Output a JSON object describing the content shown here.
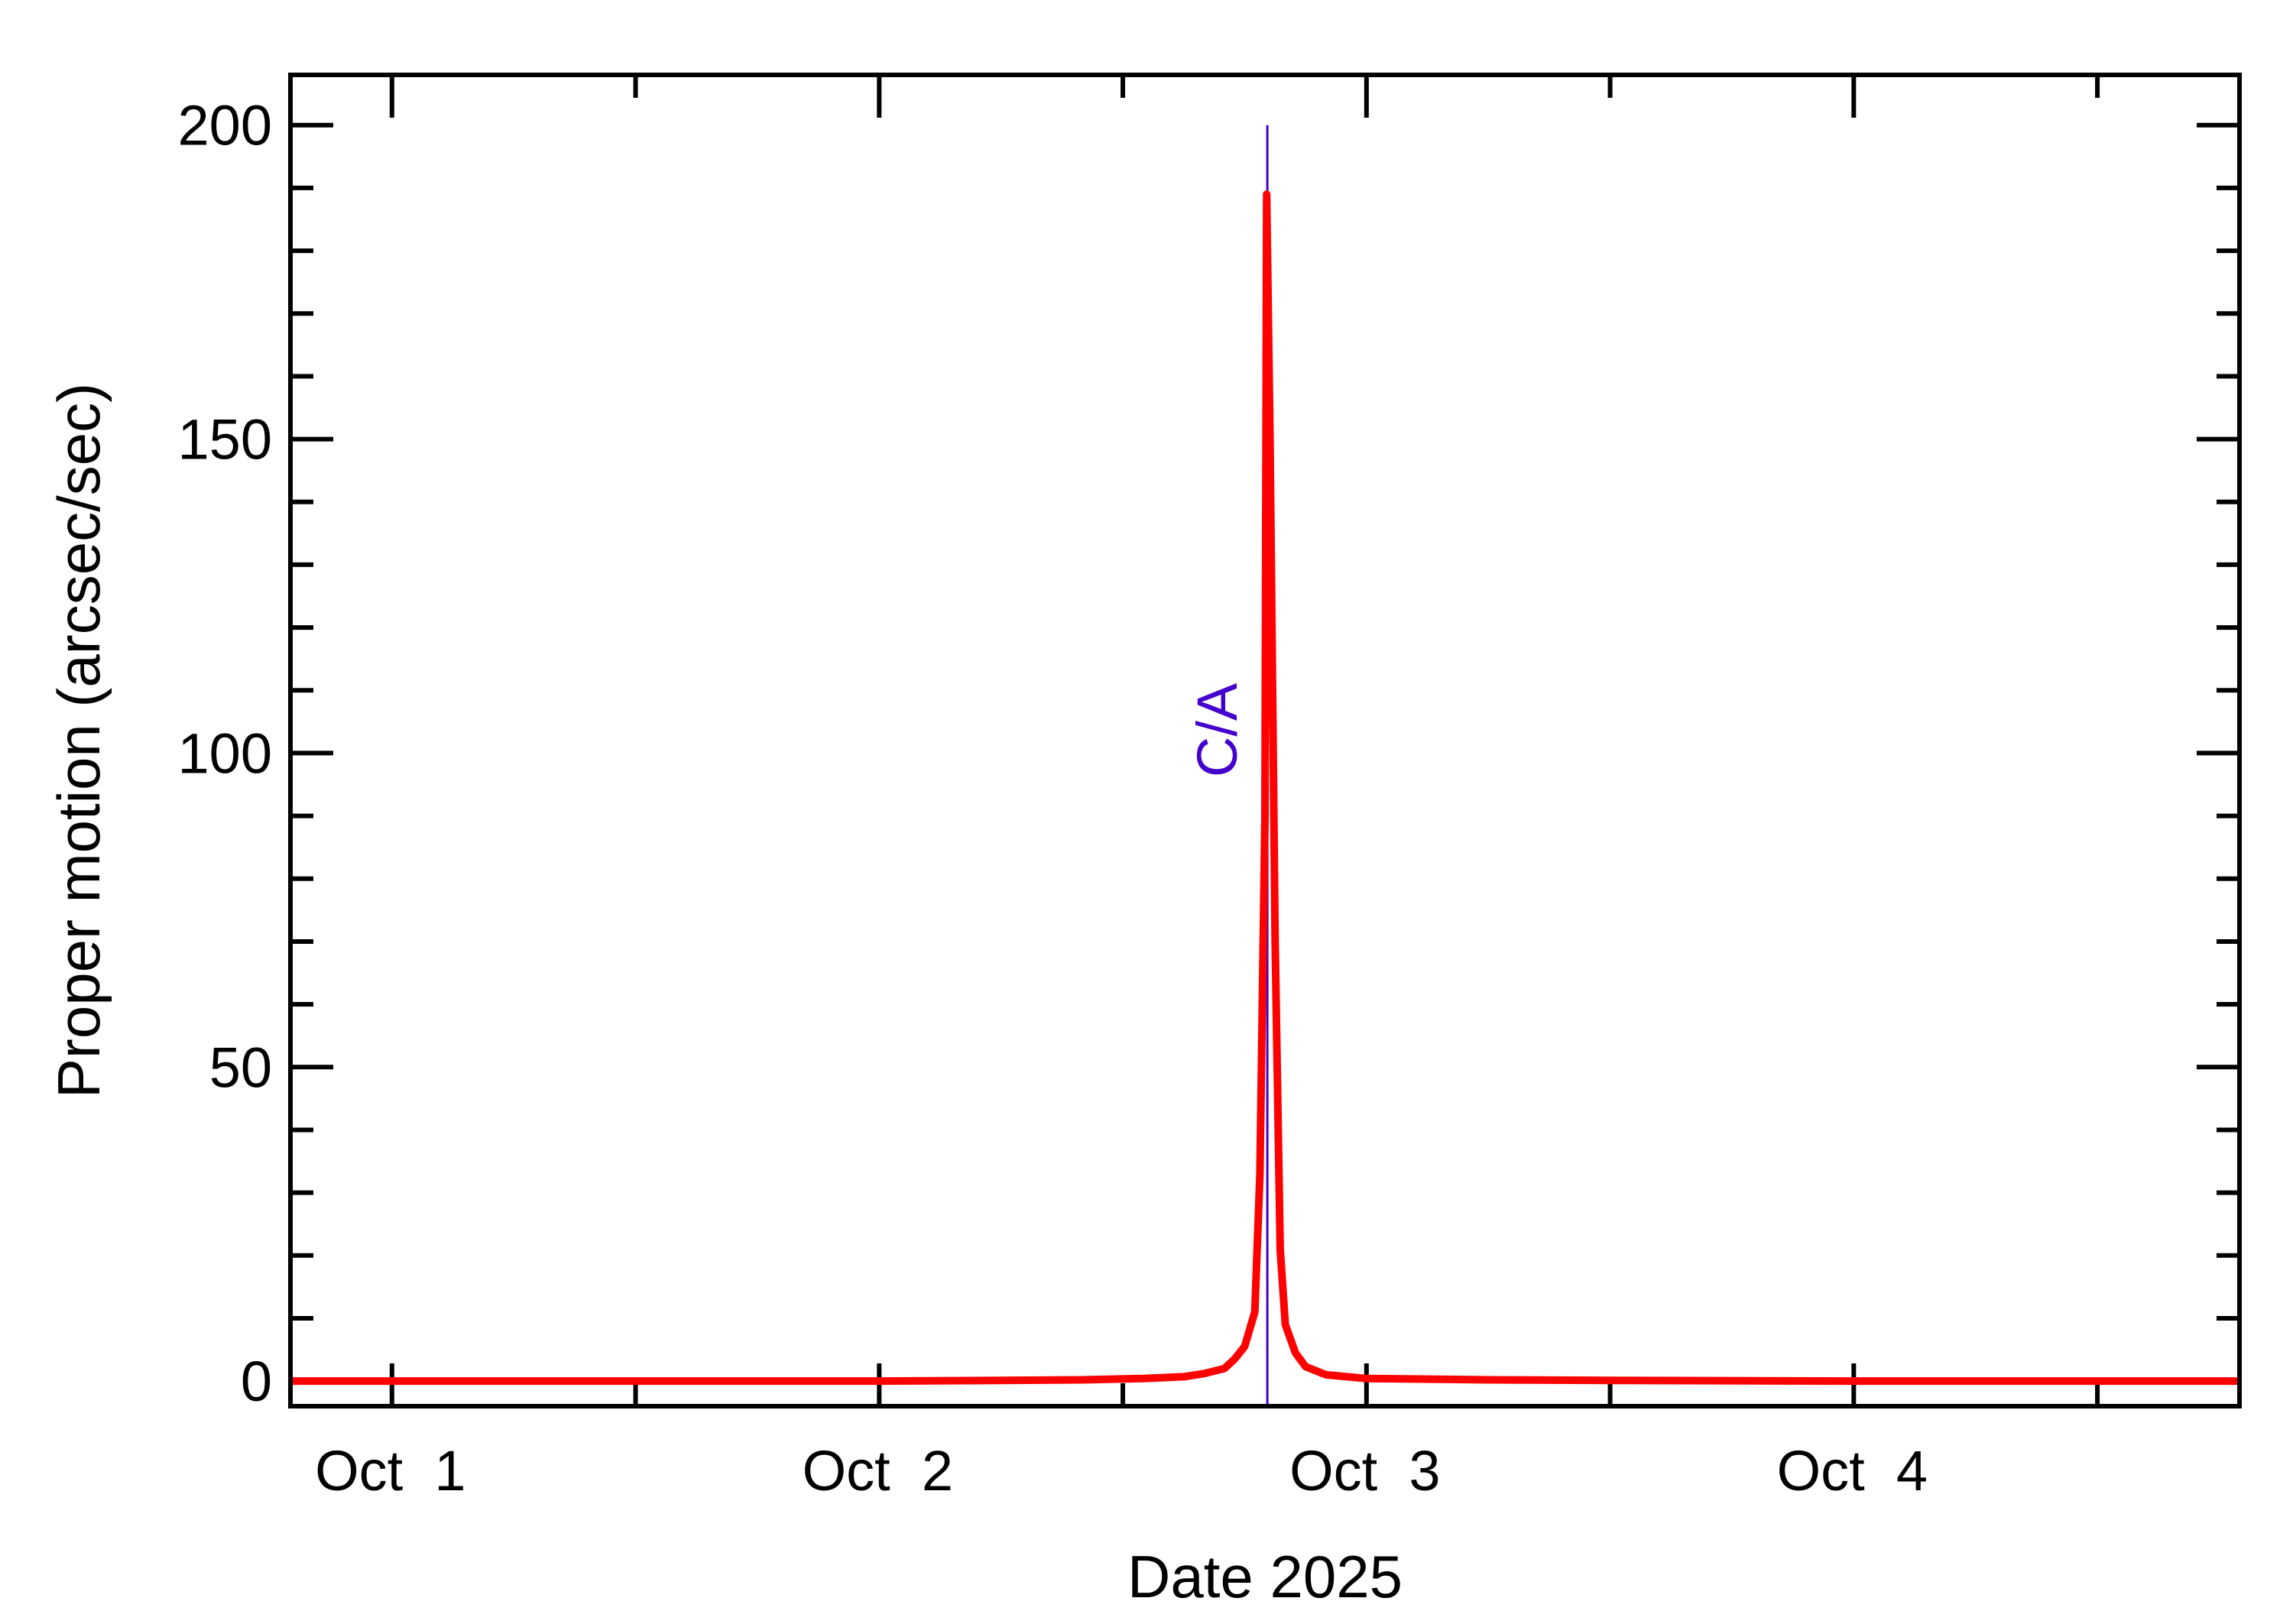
{
  "chart_data": {
    "type": "line",
    "title": "",
    "xlabel": "Date 2025",
    "ylabel": "Proper motion (arcsec/sec)",
    "xlim": [
      "2025-09-30T19:00",
      "2025-10-04T19:00"
    ],
    "ylim": [
      -4,
      208
    ],
    "x_ticks": [
      {
        "date": "2025-10-01T00:00",
        "label": "Oct  1"
      },
      {
        "date": "2025-10-02T00:00",
        "label": "Oct  2"
      },
      {
        "date": "2025-10-03T00:00",
        "label": "Oct  3"
      },
      {
        "date": "2025-10-04T00:00",
        "label": "Oct  4"
      }
    ],
    "y_ticks": [
      0,
      50,
      100,
      150,
      200
    ],
    "y_minor_step": 10,
    "x_minor_per_major": 1,
    "grid": false,
    "series": [
      {
        "color": "#ff0000",
        "x": [
          "2025-09-30T19:00",
          "2025-10-01T00:00",
          "2025-10-01T12:00",
          "2025-10-02T00:00",
          "2025-10-02T06:00",
          "2025-10-02T10:00",
          "2025-10-02T13:00",
          "2025-10-02T15:00",
          "2025-10-02T16:00",
          "2025-10-02T17:00",
          "2025-10-02T17:30",
          "2025-10-02T18:00",
          "2025-10-02T18:30",
          "2025-10-02T18:45",
          "2025-10-02T19:00",
          "2025-10-02T19:05",
          "2025-10-02T19:15",
          "2025-10-02T19:30",
          "2025-10-02T19:45",
          "2025-10-02T20:00",
          "2025-10-02T20:30",
          "2025-10-02T21:00",
          "2025-10-02T22:00",
          "2025-10-03T00:00",
          "2025-10-03T06:00",
          "2025-10-03T12:00",
          "2025-10-04T00:00",
          "2025-10-04T19:00"
        ],
        "y": [
          0,
          0,
          0,
          0,
          0.1,
          0.2,
          0.4,
          0.7,
          1.2,
          2.0,
          3.5,
          5.5,
          11,
          33,
          90,
          189,
          150,
          70,
          21,
          9,
          4.5,
          2.3,
          1.0,
          0.4,
          0.2,
          0.1,
          0,
          0
        ]
      }
    ],
    "annotations": [
      {
        "x": "2025-10-02T19:07",
        "label": "C/A",
        "color": "#4400cc",
        "y_top": 200
      }
    ]
  }
}
